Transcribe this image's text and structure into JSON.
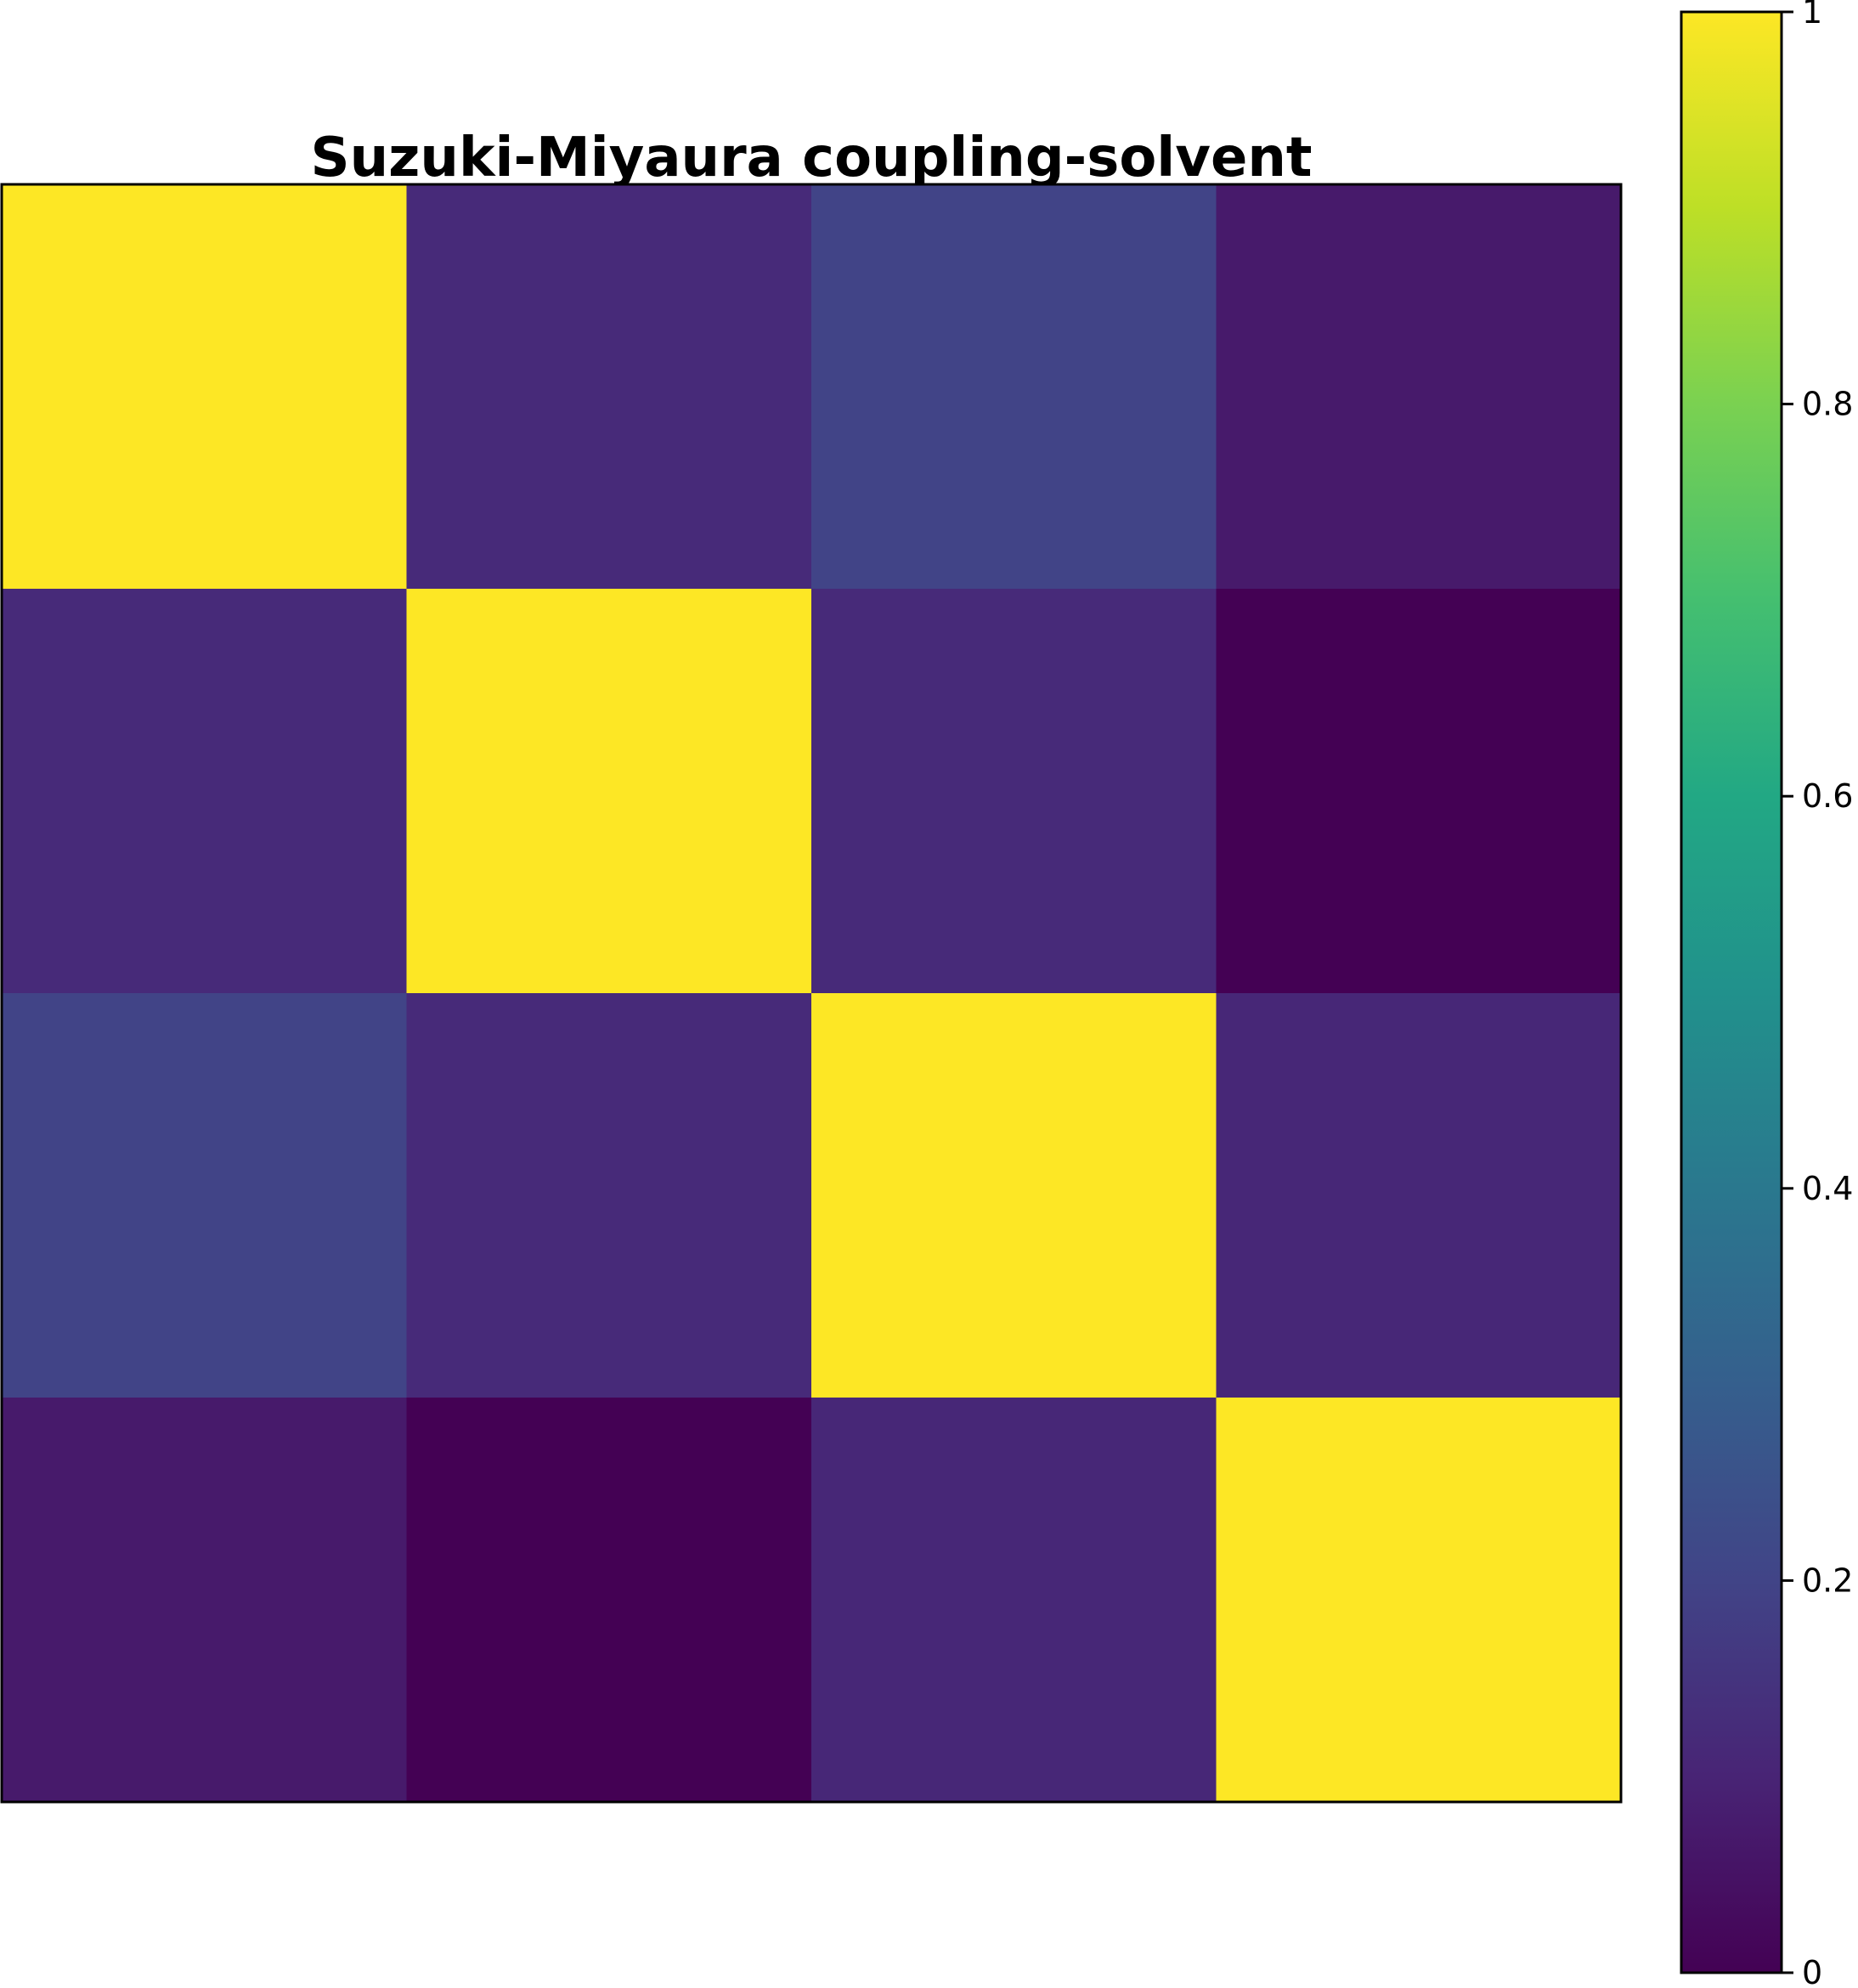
{
  "chart_data": {
    "type": "heatmap",
    "title": "Suzuki-Miyaura coupling-solvent",
    "xlabel": "",
    "ylabel": "",
    "x_tick_labels": [],
    "y_tick_labels": [],
    "matrix": [
      [
        1.0,
        0.12,
        0.2,
        0.07
      ],
      [
        0.12,
        1.0,
        0.12,
        0.0
      ],
      [
        0.2,
        0.12,
        1.0,
        0.11
      ],
      [
        0.07,
        0.0,
        0.11,
        1.0
      ]
    ],
    "colormap": "viridis",
    "colorbar": {
      "vmin": 0,
      "vmax": 1,
      "ticks": [
        0,
        0.2,
        0.4,
        0.6,
        0.8,
        1
      ],
      "tick_labels": [
        "0",
        "0.2",
        "0.4",
        "0.6",
        "0.8",
        "1"
      ],
      "position": "right"
    },
    "grid": false,
    "legend": "none"
  }
}
